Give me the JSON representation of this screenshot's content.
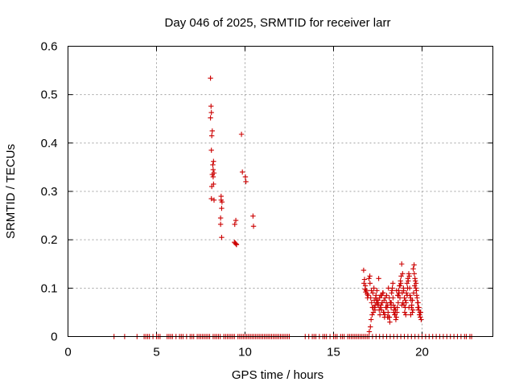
{
  "chart_data": {
    "type": "scatter",
    "title": "Day 046 of 2025, SRMTID for receiver larr",
    "xlabel": "GPS time / hours",
    "ylabel": "SRMTID / TECUs",
    "xlim": [
      0,
      24
    ],
    "ylim": [
      0,
      0.6
    ],
    "xticks": [
      0,
      5,
      10,
      15,
      20
    ],
    "yticks": [
      0,
      0.1,
      0.2,
      0.3,
      0.4,
      0.5,
      0.6
    ],
    "xtick_labels": [
      "0",
      "5",
      "10",
      "15",
      "20"
    ],
    "ytick_labels": [
      "0",
      "0.1",
      "0.2",
      "0.3",
      "0.4",
      "0.5",
      "0.6"
    ],
    "grid": true,
    "marker": "+",
    "series": [
      {
        "name": "SRMTID",
        "color": "#cc0000",
        "x": [
          8.05,
          8.08,
          8.1,
          8.05,
          8.15,
          8.12,
          8.1,
          8.22,
          8.18,
          8.2,
          8.15,
          8.25,
          8.2,
          8.22,
          8.12,
          8.1,
          8.25,
          8.65,
          8.65,
          8.68,
          8.62,
          8.62,
          8.68,
          8.7,
          9.4,
          9.48,
          9.42,
          9.52,
          9.45,
          9.5,
          9.8,
          9.85,
          10.02,
          10.05,
          10.45,
          10.48,
          16.7,
          16.75,
          16.8,
          16.85,
          16.72,
          16.78,
          16.9,
          16.95,
          17.0,
          17.05,
          17.1,
          17.15,
          17.2,
          17.25,
          17.3,
          17.35,
          17.4,
          17.45,
          17.5,
          17.55,
          17.6,
          17.65,
          17.7,
          17.75,
          17.8,
          17.85,
          17.9,
          17.95,
          18.0,
          18.05,
          18.1,
          18.15,
          18.2,
          18.25,
          18.3,
          18.35,
          18.4,
          18.45,
          18.5,
          18.55,
          18.6,
          18.65,
          18.7,
          18.75,
          18.8,
          18.85,
          18.9,
          18.95,
          19.0,
          19.05,
          19.1,
          19.15,
          19.2,
          19.25,
          19.3,
          19.35,
          19.4,
          19.45,
          19.5,
          19.55,
          19.6,
          19.65,
          19.7,
          19.75,
          19.8,
          19.85,
          19.9,
          19.95,
          17.02,
          17.08,
          17.12,
          17.18,
          17.22,
          17.28,
          17.32,
          17.38,
          17.42,
          17.48,
          17.52,
          17.58,
          17.62,
          17.68,
          17.72,
          17.78,
          17.82,
          17.88,
          17.92,
          17.98,
          18.02,
          18.08,
          18.12,
          18.18,
          18.22,
          18.28,
          18.32,
          18.38,
          18.42,
          18.48,
          18.52,
          18.58,
          18.62,
          18.68,
          18.72,
          18.78,
          18.82,
          18.88,
          18.92,
          18.98,
          19.02,
          19.08,
          19.12,
          19.18,
          19.22,
          19.28,
          19.32,
          19.38,
          19.42,
          19.48,
          19.52,
          19.58,
          19.62,
          19.68,
          19.72,
          19.78,
          19.82,
          19.88,
          16.82,
          16.92,
          17.06,
          17.14,
          17.24,
          17.34,
          17.44,
          17.56,
          17.66,
          17.74,
          17.84,
          17.96,
          18.06,
          18.16,
          18.26,
          18.36,
          18.46,
          18.56,
          18.66,
          18.76,
          18.86,
          18.96,
          19.06,
          19.16,
          19.26,
          19.36,
          19.46,
          19.56,
          19.66,
          19.76,
          19.86,
          19.92,
          2.6,
          3.2,
          3.9,
          4.3,
          4.4,
          4.5,
          4.6,
          4.8,
          5.0,
          5.1,
          5.2,
          5.6,
          5.7,
          5.8,
          5.9,
          6.1,
          6.3,
          6.4,
          6.5,
          6.7,
          6.9,
          7.0,
          7.1,
          7.3,
          7.4,
          7.5,
          7.6,
          7.7,
          7.8,
          7.9,
          8.0,
          8.2,
          8.3,
          8.4,
          8.5,
          8.6,
          8.8,
          8.9,
          9.0,
          9.1,
          9.2,
          9.3,
          9.4,
          9.6,
          9.7,
          9.8,
          9.9,
          10.0,
          10.1,
          10.2,
          10.3,
          10.4,
          10.5,
          10.6,
          10.7,
          10.8,
          10.9,
          11.0,
          11.1,
          11.2,
          11.3,
          11.4,
          11.5,
          11.6,
          11.7,
          11.8,
          11.9,
          12.0,
          12.1,
          12.2,
          12.3,
          12.4,
          12.5,
          13.4,
          13.6,
          13.8,
          13.9,
          14.0,
          14.2,
          14.4,
          14.5,
          14.6,
          14.8,
          15.0,
          15.1,
          15.2,
          15.4,
          15.5,
          15.6,
          15.8,
          15.9,
          16.0,
          16.1,
          16.2,
          16.3,
          16.4,
          16.5,
          16.6,
          16.7,
          16.8,
          16.9,
          17.0,
          17.2,
          17.4,
          17.6,
          17.8,
          18.0,
          18.2,
          18.4,
          18.6,
          18.8,
          19.0,
          19.2,
          19.4,
          19.6,
          19.8,
          20.0,
          20.2,
          20.4,
          20.6,
          20.8,
          21.0,
          21.2,
          21.4,
          21.6,
          21.8,
          22.0,
          22.2,
          22.4,
          22.5,
          22.7,
          22.8
        ],
        "y": [
          0.534,
          0.476,
          0.463,
          0.452,
          0.425,
          0.415,
          0.385,
          0.362,
          0.355,
          0.345,
          0.335,
          0.338,
          0.33,
          0.315,
          0.31,
          0.285,
          0.282,
          0.29,
          0.282,
          0.265,
          0.245,
          0.232,
          0.205,
          0.278,
          0.195,
          0.24,
          0.232,
          0.19,
          0.193,
          0.191,
          0.418,
          0.34,
          0.33,
          0.32,
          0.249,
          0.228,
          0.137,
          0.118,
          0.105,
          0.095,
          0.11,
          0.098,
          0.088,
          0.085,
          0.12,
          0.125,
          0.08,
          0.07,
          0.06,
          0.05,
          0.075,
          0.065,
          0.085,
          0.095,
          0.07,
          0.12,
          0.08,
          0.06,
          0.055,
          0.07,
          0.09,
          0.075,
          0.045,
          0.06,
          0.085,
          0.04,
          0.1,
          0.08,
          0.07,
          0.06,
          0.095,
          0.11,
          0.05,
          0.045,
          0.055,
          0.04,
          0.06,
          0.07,
          0.09,
          0.08,
          0.11,
          0.15,
          0.13,
          0.1,
          0.08,
          0.06,
          0.07,
          0.11,
          0.12,
          0.13,
          0.1,
          0.08,
          0.06,
          0.05,
          0.14,
          0.148,
          0.12,
          0.1,
          0.085,
          0.07,
          0.055,
          0.045,
          0.04,
          0.035,
          0.01,
          0.02,
          0.035,
          0.045,
          0.09,
          0.1,
          0.06,
          0.08,
          0.07,
          0.065,
          0.075,
          0.055,
          0.045,
          0.065,
          0.085,
          0.09,
          0.05,
          0.04,
          0.08,
          0.07,
          0.06,
          0.05,
          0.04,
          0.03,
          0.07,
          0.09,
          0.1,
          0.065,
          0.055,
          0.045,
          0.035,
          0.05,
          0.085,
          0.095,
          0.105,
          0.115,
          0.125,
          0.09,
          0.07,
          0.065,
          0.05,
          0.045,
          0.09,
          0.1,
          0.115,
          0.125,
          0.085,
          0.075,
          0.065,
          0.055,
          0.09,
          0.105,
          0.115,
          0.095,
          0.08,
          0.07,
          0.06,
          0.05,
          0.092,
          0.08,
          0.11,
          0.095,
          0.06,
          0.055,
          0.075,
          0.065,
          0.085,
          0.07,
          0.05,
          0.06,
          0.065,
          0.04,
          0.07,
          0.08,
          0.06,
          0.095,
          0.085,
          0.105,
          0.065,
          0.095,
          0.075,
          0.085,
          0.06,
          0.045,
          0.075,
          0.13,
          0.11,
          0.06,
          0.045,
          0.05,
          0,
          0,
          0,
          0,
          0,
          0,
          0,
          0,
          0,
          0,
          0,
          0,
          0,
          0,
          0,
          0,
          0,
          0,
          0,
          0,
          0,
          0,
          0,
          0,
          0,
          0,
          0,
          0,
          0,
          0,
          0,
          0,
          0,
          0,
          0,
          0,
          0,
          0,
          0,
          0,
          0,
          0,
          0,
          0,
          0,
          0,
          0,
          0,
          0,
          0,
          0,
          0,
          0,
          0,
          0,
          0,
          0,
          0,
          0,
          0,
          0,
          0,
          0,
          0,
          0,
          0,
          0,
          0,
          0,
          0,
          0,
          0,
          0,
          0,
          0,
          0,
          0,
          0,
          0,
          0,
          0,
          0,
          0,
          0,
          0,
          0,
          0,
          0,
          0,
          0,
          0,
          0,
          0,
          0,
          0,
          0,
          0,
          0,
          0,
          0,
          0,
          0,
          0,
          0,
          0,
          0,
          0,
          0,
          0,
          0,
          0,
          0,
          0,
          0,
          0,
          0,
          0,
          0,
          0,
          0,
          0,
          0,
          0,
          0,
          0,
          0,
          0,
          0,
          0,
          0,
          0,
          0
        ]
      }
    ]
  }
}
